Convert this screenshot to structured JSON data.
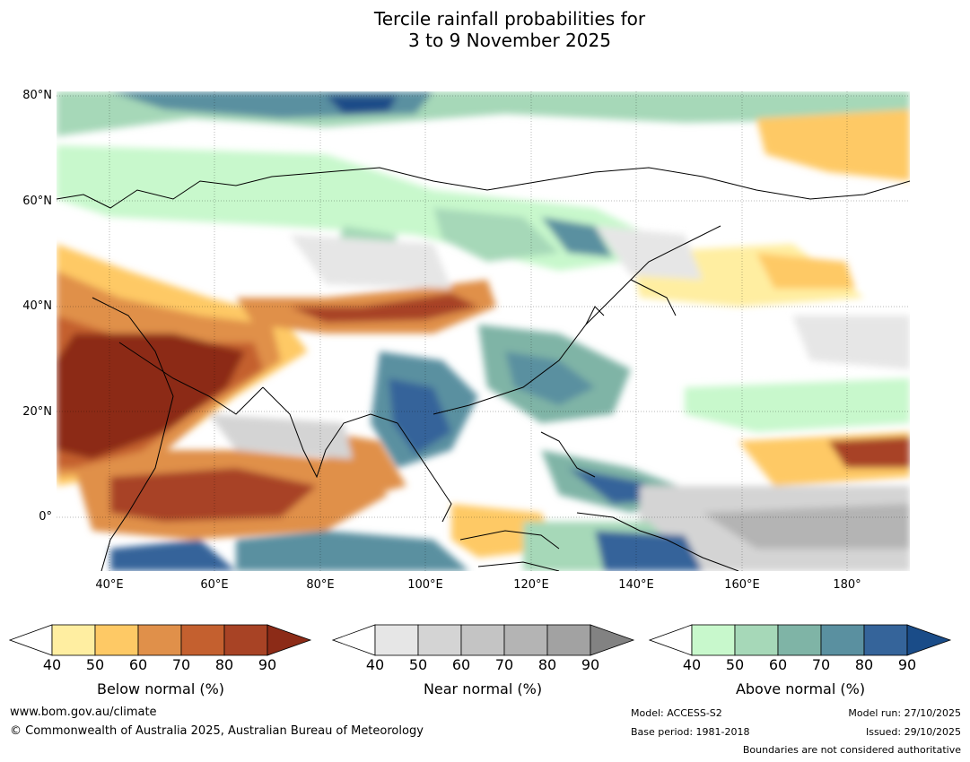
{
  "title_line1": "Tercile rainfall probabilities for",
  "title_line2": "3 to 9 November 2025",
  "lat_ticks": [
    "80°N",
    "60°N",
    "40°N",
    "20°N",
    "0°"
  ],
  "lon_ticks": [
    "40°E",
    "60°E",
    "80°E",
    "100°E",
    "120°E",
    "140°E",
    "160°E",
    "180°"
  ],
  "colorbars": [
    {
      "label": "Below normal (%)",
      "ticks": [
        "40",
        "50",
        "60",
        "70",
        "80",
        "90"
      ],
      "colors": [
        "#ffffff",
        "#ffeea1",
        "#fec965",
        "#e0904a",
        "#c4602f",
        "#a84325",
        "#8c2b17"
      ]
    },
    {
      "label": "Near normal (%)",
      "ticks": [
        "40",
        "50",
        "60",
        "70",
        "80",
        "90"
      ],
      "colors": [
        "#ffffff",
        "#e6e6e6",
        "#d4d4d4",
        "#c4c4c4",
        "#b4b4b4",
        "#a2a2a2",
        "#828282"
      ]
    },
    {
      "label": "Above normal (%)",
      "ticks": [
        "40",
        "50",
        "60",
        "70",
        "80",
        "90"
      ],
      "colors": [
        "#ffffff",
        "#c8f8cc",
        "#a6d8b8",
        "#7fb4a6",
        "#5a90a0",
        "#35649a",
        "#1a4c88"
      ]
    }
  ],
  "footer": {
    "url": "www.bom.gov.au/climate",
    "copyright": "© Commonwealth of Australia 2025, Australian Bureau of Meteorology",
    "model": "Model: ACCESS-S2",
    "base_period": "Base period: 1981-2018",
    "model_run": "Model run: 27/10/2025",
    "issued": "Issued: 29/10/2025",
    "disclaimer": "Boundaries are not considered authoritative"
  }
}
